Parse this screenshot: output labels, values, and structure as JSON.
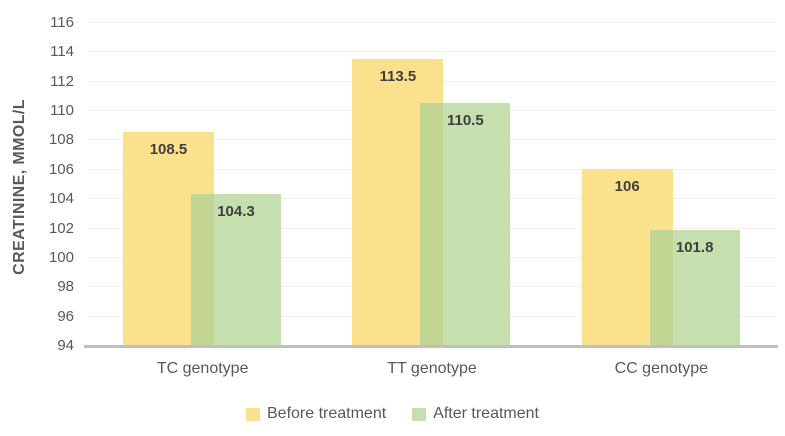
{
  "chart_data": {
    "type": "bar",
    "categories": [
      "TC genotype",
      "TT genotype",
      "CC genotype"
    ],
    "series": [
      {
        "name": "Before treatment",
        "values": [
          108.5,
          113.5,
          106
        ],
        "color": "#fce18c"
      },
      {
        "name": "After treatment",
        "values": [
          104.3,
          110.5,
          101.8
        ],
        "color": "#c6dfae"
      }
    ],
    "overlap_color": "#c2d593",
    "data_labels": [
      "108.5",
      "113.5",
      "106",
      "104.3",
      "110.5",
      "101.8"
    ],
    "title": "",
    "xlabel": "",
    "ylabel": "CREATININE, MMOL/L",
    "ylim": [
      94,
      116
    ],
    "ytick_step": 2,
    "yticks": [
      94,
      96,
      98,
      100,
      102,
      104,
      106,
      108,
      110,
      112,
      114,
      116
    ],
    "grid": true,
    "legend_position": "bottom",
    "colors": {
      "gridline": "#f1f1f1",
      "axis_line": "#bfbfbf",
      "tick_text": "#595959",
      "category_text": "#595959",
      "legend_text": "#595959",
      "data_label_text": "#3f3f3f",
      "background": "#ffffff"
    }
  }
}
